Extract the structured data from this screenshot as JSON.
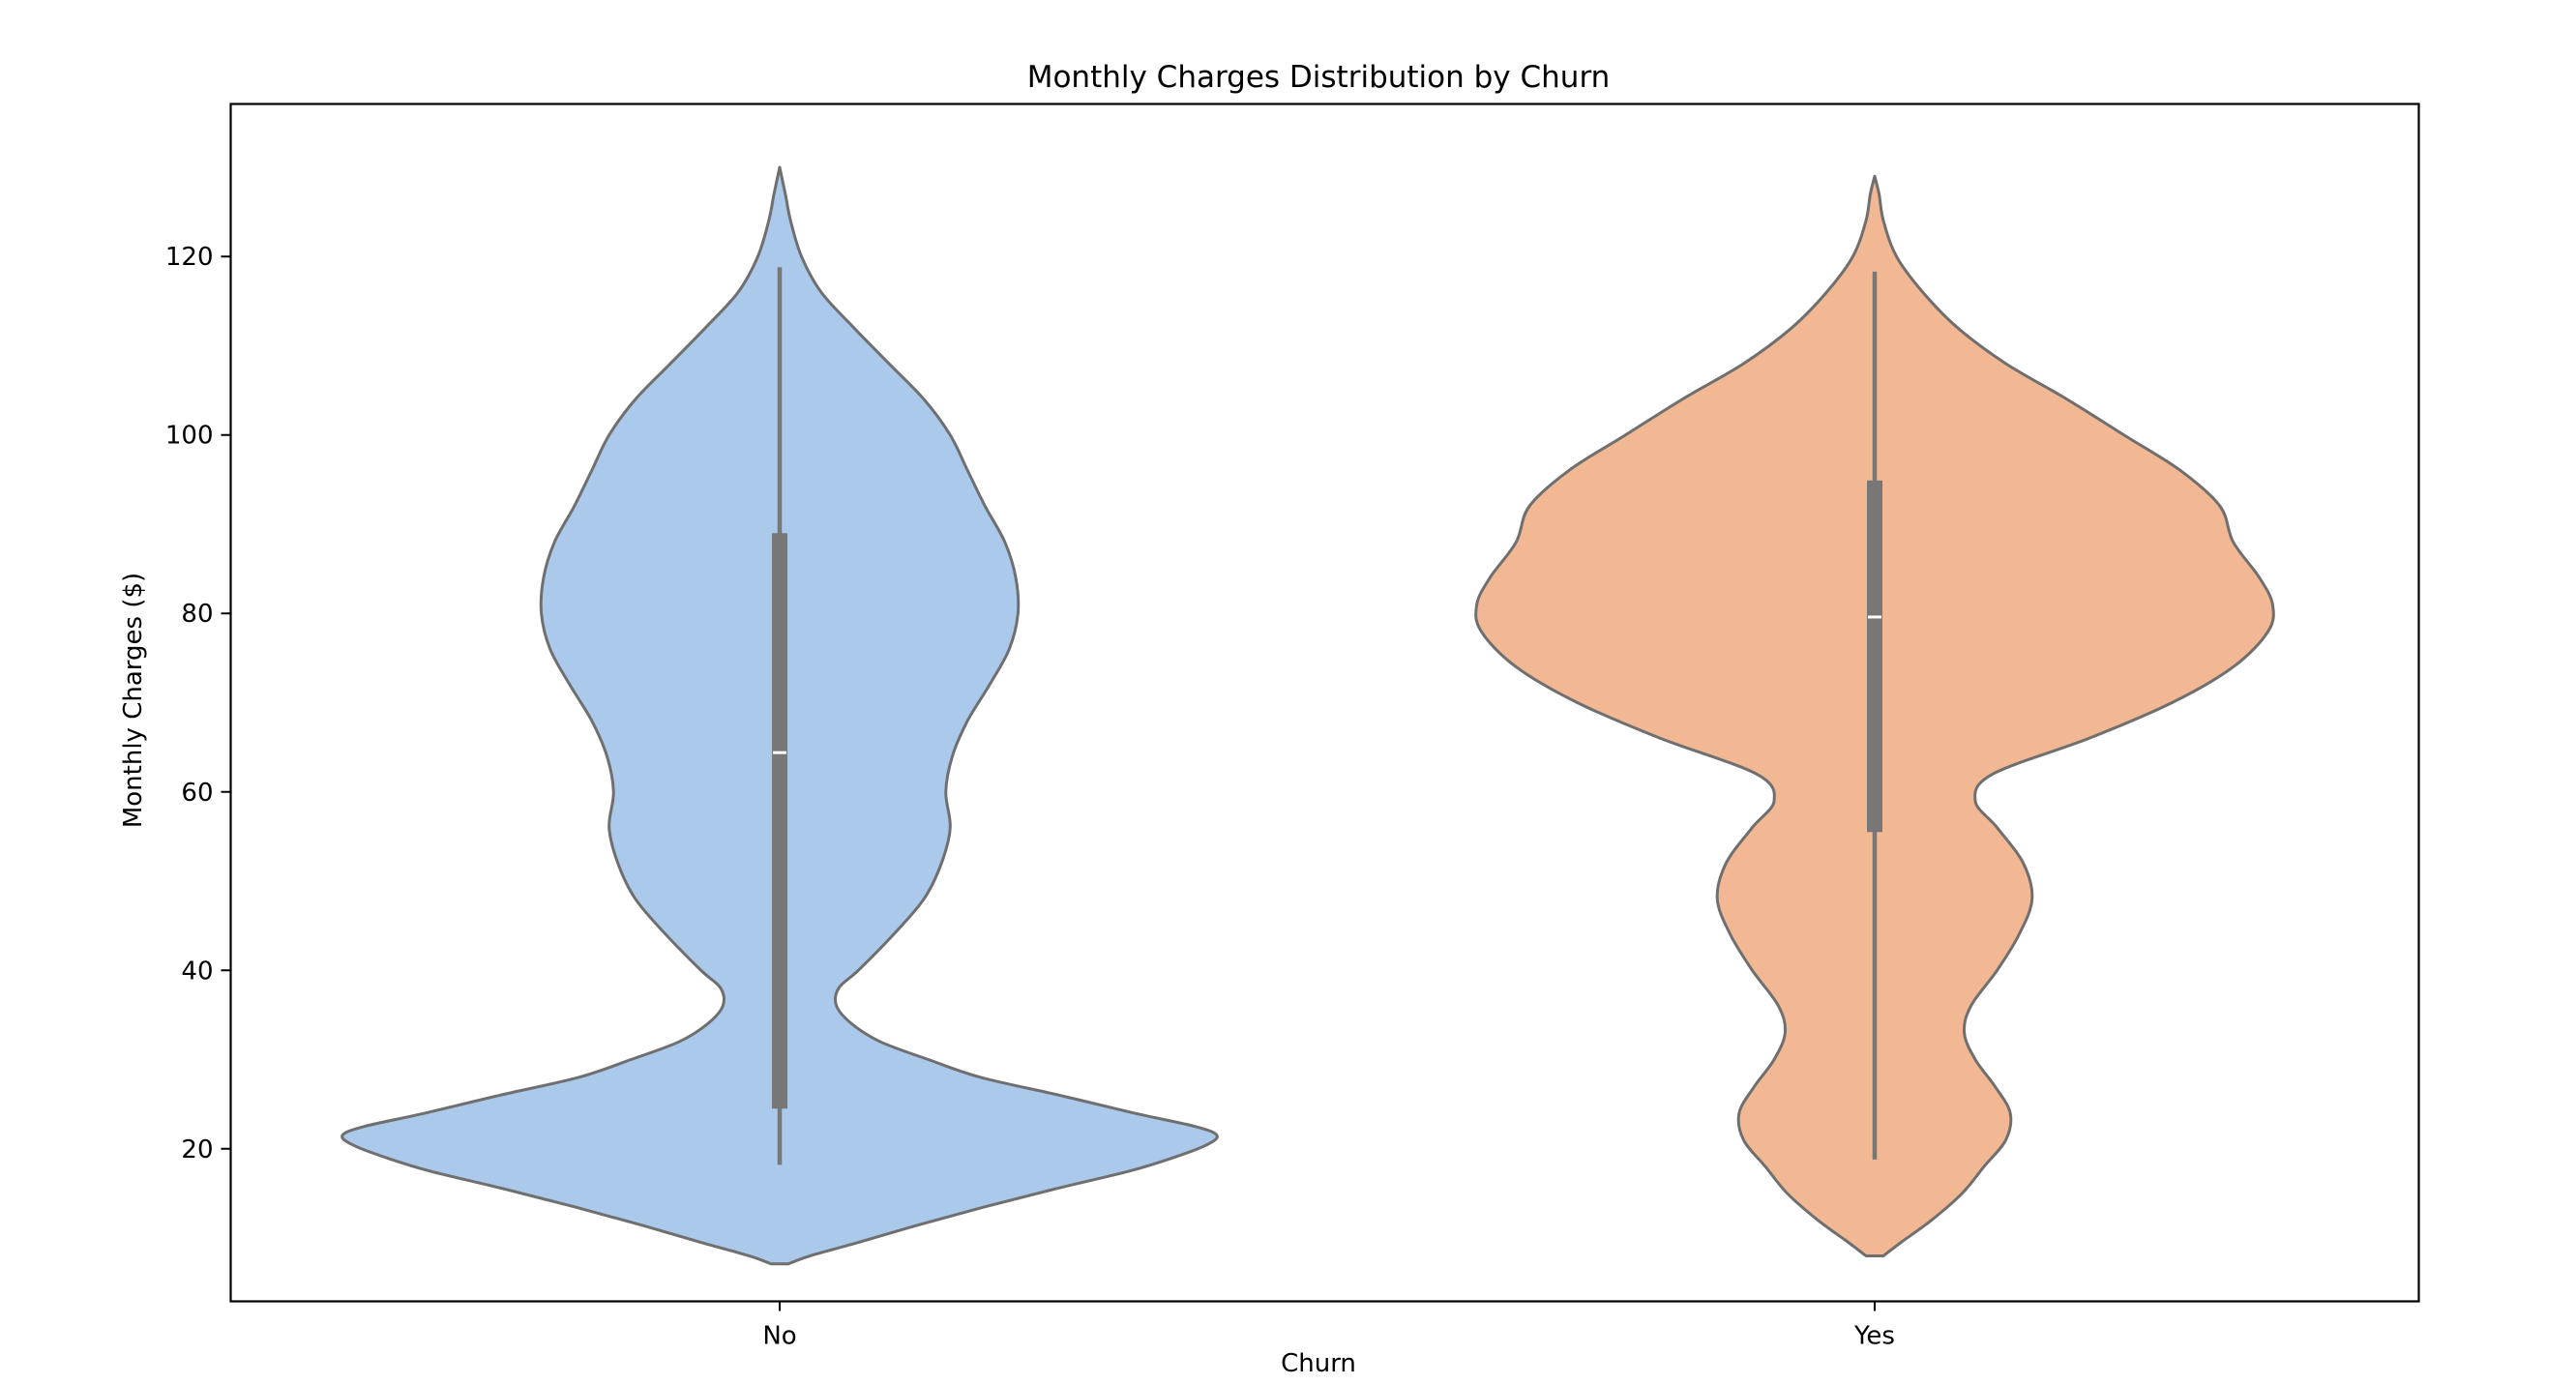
{
  "chart_data": {
    "type": "violin",
    "title": "Monthly Charges Distribution by Churn",
    "xlabel": "Churn",
    "ylabel": "Monthly Charges ($)",
    "categories": [
      "No",
      "Yes"
    ],
    "ylim": [
      2.9,
      137.1
    ],
    "yticks": [
      20,
      40,
      60,
      80,
      100,
      120
    ],
    "ytick_labels": [
      "20",
      "40",
      "60",
      "80",
      "100",
      "120"
    ],
    "grid": false,
    "legend": "none",
    "colors": {
      "No": "#abc9eb",
      "Yes": "#f1b893",
      "outline": "#6f6f6f",
      "inner_box": "#777777",
      "median": "#ffffff"
    },
    "series": [
      {
        "category": "No",
        "min": 18.2,
        "q1": 24.5,
        "median": 64.4,
        "q3": 89.0,
        "max": 118.8,
        "density_profile": [
          [
            7.1,
            0.02
          ],
          [
            8.0,
            0.07
          ],
          [
            9.5,
            0.18
          ],
          [
            11.5,
            0.32
          ],
          [
            13.5,
            0.47
          ],
          [
            15.5,
            0.63
          ],
          [
            17.5,
            0.8
          ],
          [
            19.0,
            0.9
          ],
          [
            20.4,
            0.975
          ],
          [
            21.5,
            1.0
          ],
          [
            22.5,
            0.95
          ],
          [
            24.0,
            0.81
          ],
          [
            26.0,
            0.64
          ],
          [
            28.0,
            0.46
          ],
          [
            30.0,
            0.34
          ],
          [
            32.0,
            0.23
          ],
          [
            34.0,
            0.165
          ],
          [
            36.0,
            0.13
          ],
          [
            38.0,
            0.135
          ],
          [
            40.0,
            0.18
          ],
          [
            44.0,
            0.26
          ],
          [
            48.0,
            0.33
          ],
          [
            52.0,
            0.37
          ],
          [
            56.0,
            0.39
          ],
          [
            60.0,
            0.38
          ],
          [
            64.0,
            0.395
          ],
          [
            68.0,
            0.43
          ],
          [
            72.0,
            0.48
          ],
          [
            76.0,
            0.525
          ],
          [
            80.0,
            0.545
          ],
          [
            84.0,
            0.54
          ],
          [
            88.0,
            0.515
          ],
          [
            92.0,
            0.47
          ],
          [
            96.0,
            0.43
          ],
          [
            100.0,
            0.39
          ],
          [
            104.0,
            0.33
          ],
          [
            108.0,
            0.25
          ],
          [
            112.0,
            0.17
          ],
          [
            116.0,
            0.095
          ],
          [
            120.0,
            0.05
          ],
          [
            124.0,
            0.025
          ],
          [
            127.0,
            0.013
          ],
          [
            130.0,
            0.0
          ]
        ]
      },
      {
        "category": "Yes",
        "min": 18.8,
        "q1": 55.5,
        "median": 79.6,
        "q3": 94.9,
        "max": 118.3,
        "density_profile": [
          [
            8.0,
            0.02
          ],
          [
            9.5,
            0.06
          ],
          [
            12.0,
            0.13
          ],
          [
            15.0,
            0.2
          ],
          [
            18.0,
            0.25
          ],
          [
            21.0,
            0.3
          ],
          [
            24.0,
            0.31
          ],
          [
            27.0,
            0.275
          ],
          [
            30.0,
            0.23
          ],
          [
            33.0,
            0.205
          ],
          [
            36.0,
            0.22
          ],
          [
            40.0,
            0.28
          ],
          [
            44.0,
            0.33
          ],
          [
            48.0,
            0.36
          ],
          [
            52.0,
            0.34
          ],
          [
            56.0,
            0.28
          ],
          [
            59.0,
            0.23
          ],
          [
            62.0,
            0.27
          ],
          [
            66.0,
            0.49
          ],
          [
            70.0,
            0.68
          ],
          [
            74.0,
            0.82
          ],
          [
            78.0,
            0.9
          ],
          [
            81.0,
            0.91
          ],
          [
            84.0,
            0.88
          ],
          [
            88.0,
            0.82
          ],
          [
            92.0,
            0.79
          ],
          [
            96.0,
            0.7
          ],
          [
            100.0,
            0.57
          ],
          [
            104.0,
            0.44
          ],
          [
            108.0,
            0.3
          ],
          [
            112.0,
            0.19
          ],
          [
            116.0,
            0.11
          ],
          [
            120.0,
            0.05
          ],
          [
            124.0,
            0.02
          ],
          [
            127.0,
            0.01
          ],
          [
            129.0,
            0.0
          ]
        ]
      }
    ]
  }
}
